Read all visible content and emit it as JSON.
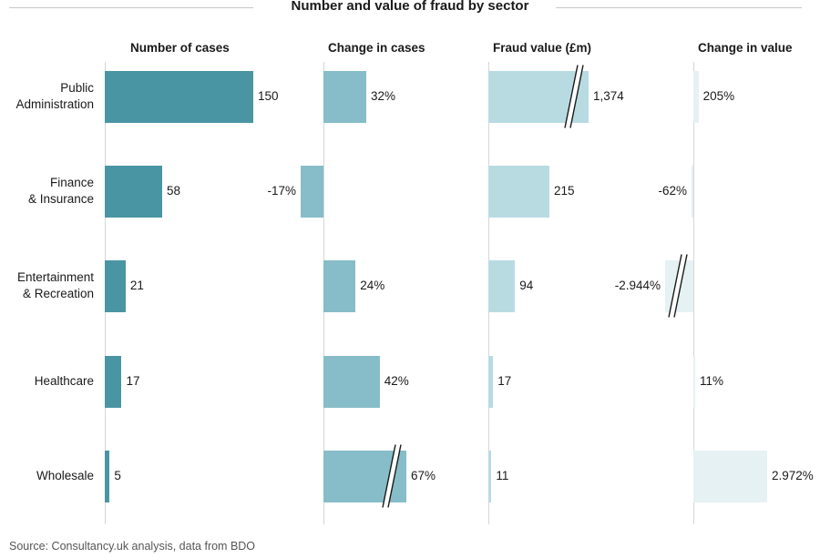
{
  "title": "Number and value of fraud by sector",
  "source": "Source: Consultancy.uk analysis, data from BDO",
  "colors": {
    "cases": "#4a95a3",
    "change_cases": "#86bdc8",
    "fraud_value": "#b8dbe2",
    "change_value": "#e6f1f3"
  },
  "chart_data": {
    "type": "bar",
    "orientation": "horizontal",
    "title": "Number and value of fraud by sector",
    "categories": [
      "Public Administration",
      "Finance & Insurance",
      "Entertainment & Recreation",
      "Healthcare",
      "Wholesale"
    ],
    "category_lines": [
      [
        "Public",
        "Administration"
      ],
      [
        "Finance",
        "& Insurance"
      ],
      [
        "Entertainment",
        "& Recreation"
      ],
      [
        "Healthcare"
      ],
      [
        "Wholesale"
      ]
    ],
    "series": [
      {
        "name": "Number of cases",
        "values": [
          150,
          58,
          21,
          17,
          5
        ],
        "labels": [
          "150",
          "58",
          "21",
          "17",
          "5"
        ],
        "broken": []
      },
      {
        "name": "Change in cases",
        "values": [
          32,
          -17,
          24,
          42,
          67
        ],
        "labels": [
          "32%",
          "-17%",
          "24%",
          "42%",
          "67%"
        ],
        "broken": [
          4
        ]
      },
      {
        "name": "Fraud value (£m)",
        "values": [
          1374,
          215,
          94,
          17,
          11
        ],
        "labels": [
          "1,374",
          "215",
          "94",
          "17",
          "11"
        ],
        "broken": [
          0
        ]
      },
      {
        "name": "Change in value",
        "values": [
          205,
          -62,
          -2944,
          11,
          2972
        ],
        "labels": [
          "205%",
          "-62%",
          "-2.944%",
          "11%",
          "2.972%"
        ],
        "broken": [
          2
        ]
      }
    ]
  }
}
